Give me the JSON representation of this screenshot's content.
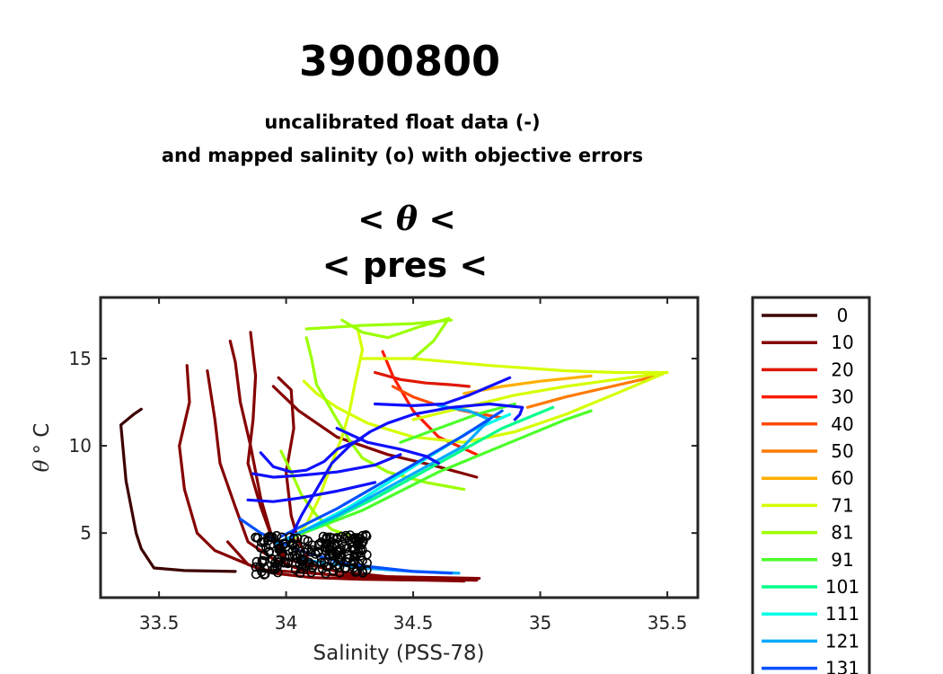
{
  "chart_data": {
    "type": "line",
    "title": "3900800",
    "subtitle_line1": "uncalibrated float data (-)",
    "subtitle_line2": "and mapped salinity (o) with objective errors",
    "sub_title_theta_left": "< ",
    "sub_title_theta_symbol": "θ",
    "sub_title_theta_right": " <",
    "sub_title_pres": "< pres <",
    "xlabel": "Salinity (PSS-78)",
    "ylabel_symbol": "θ",
    "ylabel_unit": "° C",
    "xlim": [
      33.27,
      35.62
    ],
    "ylim": [
      1.3,
      18.5
    ],
    "xticks": [
      33.5,
      34,
      34.5,
      35,
      35.5
    ],
    "xtick_labels": [
      "33.5",
      "34",
      "34.5",
      "35",
      "35.5"
    ],
    "yticks": [
      5,
      10,
      15
    ],
    "ytick_labels": [
      "5",
      "10",
      "15"
    ],
    "grid": false,
    "legend_position": "outside-right",
    "series": [
      {
        "name": "0",
        "color": "#3d0000",
        "x": [
          33.43,
          33.4,
          33.35,
          33.37,
          33.41,
          33.43,
          33.48,
          33.6,
          33.8
        ],
        "y": [
          12.1,
          11.8,
          11.2,
          8.0,
          5.0,
          4.1,
          3.0,
          2.85,
          2.8
        ]
      },
      {
        "name": "10",
        "color": "#850000",
        "x": [
          33.61,
          33.62,
          33.58,
          33.6,
          33.65,
          33.72,
          33.9,
          34.2,
          34.5,
          34.7
        ],
        "y": [
          14.6,
          12.5,
          10.0,
          7.5,
          5.0,
          4.0,
          2.9,
          2.6,
          2.45,
          2.4
        ]
      },
      {
        "name": "10",
        "color": "#850000",
        "x": [
          33.69,
          33.72,
          33.74,
          33.8,
          33.85,
          33.95,
          34.1,
          34.3,
          34.5,
          34.75
        ],
        "y": [
          14.3,
          11.5,
          9.0,
          6.5,
          4.5,
          3.5,
          2.7,
          2.45,
          2.35,
          2.3
        ]
      },
      {
        "name": "10",
        "color": "#850000",
        "x": [
          33.78,
          33.8,
          33.82,
          33.86,
          33.9,
          33.94,
          34.0,
          34.2,
          34.4,
          34.76
        ],
        "y": [
          16.0,
          14.8,
          12.5,
          10.0,
          7.0,
          5.0,
          3.5,
          2.8,
          2.5,
          2.4
        ]
      },
      {
        "name": "10",
        "color": "#850000",
        "x": [
          33.86,
          33.88,
          33.87,
          33.85,
          33.9,
          33.95,
          34.0,
          34.1
        ],
        "y": [
          16.5,
          14.0,
          11.5,
          9.0,
          6.5,
          4.5,
          3.2,
          2.7
        ]
      },
      {
        "name": "10",
        "color": "#850000",
        "x": [
          33.97,
          34.02,
          34.03,
          34.0,
          34.02,
          34.05,
          34.1
        ],
        "y": [
          13.9,
          13.2,
          11.0,
          8.5,
          6.0,
          4.5,
          3.2
        ]
      },
      {
        "name": "10",
        "color": "#850000",
        "x": [
          33.95,
          34.05,
          34.2,
          34.4,
          34.6,
          34.75
        ],
        "y": [
          13.4,
          12.0,
          10.5,
          9.5,
          8.8,
          8.2
        ]
      },
      {
        "name": "10",
        "color": "#850000",
        "x": [
          33.77,
          33.85,
          33.95,
          34.1,
          34.3,
          34.55,
          34.7
        ],
        "y": [
          4.5,
          3.2,
          2.7,
          2.45,
          2.35,
          2.3,
          2.25
        ]
      },
      {
        "name": "20",
        "color": "#e01600",
        "x": [
          34.35,
          34.45,
          34.55,
          34.65,
          34.72
        ],
        "y": [
          14.2,
          13.8,
          13.6,
          13.5,
          13.4
        ]
      },
      {
        "name": "30",
        "color": "#ff1a00",
        "x": [
          34.38,
          34.42,
          34.5,
          34.6,
          34.75
        ],
        "y": [
          15.4,
          14.0,
          12.0,
          10.5,
          9.5
        ]
      },
      {
        "name": "40",
        "color": "#ff4a00",
        "x": [
          34.42,
          34.5,
          34.58,
          34.7,
          34.85
        ],
        "y": [
          13.4,
          12.8,
          12.4,
          12.0,
          11.6
        ]
      },
      {
        "name": "50",
        "color": "#ff7a00",
        "x": [
          34.95,
          35.1,
          35.25,
          35.4,
          35.48
        ],
        "y": [
          12.2,
          12.8,
          13.3,
          13.8,
          14.1
        ]
      },
      {
        "name": "60",
        "color": "#ffb000",
        "x": [
          34.7,
          34.85,
          35.0,
          35.2
        ],
        "y": [
          13.0,
          13.4,
          13.7,
          14.0
        ]
      },
      {
        "name": "71",
        "color": "#d4ff00",
        "x": [
          34.3,
          34.5,
          34.8,
          35.1,
          35.3,
          35.5,
          35.35,
          35.1,
          34.9,
          34.7,
          34.5
        ],
        "y": [
          15.0,
          15.0,
          14.6,
          14.3,
          14.2,
          14.2,
          13.9,
          13.4,
          12.9,
          12.2,
          11.5
        ]
      },
      {
        "name": "71",
        "color": "#d4ff00",
        "x": [
          34.07,
          34.12,
          34.2,
          34.32,
          34.5,
          34.7,
          34.9,
          35.1,
          35.3,
          35.48
        ],
        "y": [
          13.7,
          13.0,
          12.2,
          11.3,
          10.5,
          10.2,
          10.8,
          11.8,
          13.0,
          14.1
        ]
      },
      {
        "name": "71",
        "color": "#d4ff00",
        "x": [
          34.28,
          34.3,
          34.27,
          34.25,
          34.22,
          34.18,
          34.13,
          34.08,
          34.02
        ],
        "y": [
          16.8,
          15.5,
          13.5,
          12.0,
          10.5,
          9.0,
          7.0,
          5.5,
          4.5
        ]
      },
      {
        "name": "81",
        "color": "#9cff00",
        "x": [
          34.08,
          34.3,
          34.5,
          34.65
        ],
        "y": [
          16.7,
          16.9,
          17.0,
          17.2
        ]
      },
      {
        "name": "81",
        "color": "#9cff00",
        "x": [
          34.08,
          34.1,
          34.12,
          34.16,
          34.2,
          34.25,
          34.3,
          34.4,
          34.55,
          34.7
        ],
        "y": [
          16.2,
          15.0,
          13.5,
          12.5,
          11.5,
          10.3,
          9.3,
          8.5,
          7.9,
          7.5
        ]
      },
      {
        "name": "81",
        "color": "#9cff00",
        "x": [
          34.22,
          34.3,
          34.4,
          34.52,
          34.64,
          34.58,
          34.5
        ],
        "y": [
          17.2,
          16.5,
          16.2,
          16.8,
          17.3,
          16.0,
          15.0
        ]
      },
      {
        "name": "81",
        "color": "#9cff00",
        "x": [
          33.98,
          34.02,
          34.06,
          34.12,
          34.18,
          34.26
        ],
        "y": [
          9.7,
          8.5,
          7.2,
          6.0,
          5.2,
          4.8
        ]
      },
      {
        "name": "91",
        "color": "#4cff2a",
        "x": [
          34.05,
          34.3,
          34.6,
          34.9,
          35.1,
          35.2
        ],
        "y": [
          4.9,
          6.3,
          8.5,
          10.3,
          11.5,
          12.0
        ]
      },
      {
        "name": "91",
        "color": "#4cff2a",
        "x": [
          34.45,
          34.6,
          34.75,
          34.9
        ],
        "y": [
          10.2,
          11.0,
          11.8,
          12.4
        ]
      },
      {
        "name": "101",
        "color": "#00ff8a",
        "x": [
          34.1,
          34.35,
          34.6,
          34.85,
          35.05
        ],
        "y": [
          5.2,
          7.0,
          9.0,
          11.0,
          12.2
        ]
      },
      {
        "name": "111",
        "color": "#00ffea",
        "x": [
          34.0,
          34.25,
          34.5,
          34.72,
          34.88
        ],
        "y": [
          4.6,
          6.5,
          8.8,
          10.8,
          11.8
        ]
      },
      {
        "name": "121",
        "color": "#00aaff",
        "x": [
          33.96,
          34.2,
          34.45,
          34.7,
          34.8,
          34.72,
          34.6
        ],
        "y": [
          4.4,
          6.0,
          8.0,
          10.0,
          11.5,
          12.0,
          12.3
        ]
      },
      {
        "name": "121",
        "color": "#00aaff",
        "x": [
          34.05,
          34.3,
          34.5,
          34.68
        ],
        "y": [
          3.5,
          3.0,
          2.8,
          2.7
        ]
      },
      {
        "name": "131",
        "color": "#0050ff",
        "x": [
          33.82,
          33.9,
          34.05,
          34.25,
          34.5,
          34.65
        ],
        "y": [
          5.8,
          5.0,
          4.0,
          3.2,
          2.8,
          2.7
        ]
      },
      {
        "name": "131",
        "color": "#0050ff",
        "x": [
          33.98,
          34.2,
          34.45,
          34.7,
          34.85
        ],
        "y": [
          4.8,
          6.4,
          8.5,
          10.6,
          12.0
        ]
      },
      {
        "name": "131",
        "color": "#1010ff",
        "x": [
          34.02,
          34.06,
          34.12,
          34.18,
          34.25,
          34.33,
          34.4,
          34.5,
          34.65,
          34.8,
          34.93,
          34.92,
          34.9
        ],
        "y": [
          4.8,
          6.0,
          7.5,
          9.0,
          10.0,
          10.8,
          11.3,
          11.8,
          12.2,
          12.4,
          12.2,
          11.8,
          11.5
        ]
      },
      {
        "name": "131",
        "color": "#1010ff",
        "x": [
          34.35,
          34.5,
          34.62,
          34.72,
          34.8,
          34.88
        ],
        "y": [
          12.4,
          12.3,
          12.4,
          12.9,
          13.4,
          13.9
        ]
      },
      {
        "name": "131",
        "color": "#1010ff",
        "x": [
          33.9,
          33.95,
          34.02,
          34.08,
          34.15,
          34.2,
          34.3
        ],
        "y": [
          9.6,
          8.8,
          8.5,
          8.6,
          9.1,
          9.8,
          10.4
        ]
      },
      {
        "name": "131",
        "color": "#1010ff",
        "x": [
          33.87,
          33.95,
          34.05,
          34.2,
          34.35,
          34.45
        ],
        "y": [
          8.4,
          8.2,
          8.3,
          8.5,
          8.9,
          9.5
        ]
      },
      {
        "name": "131",
        "color": "#1010ff",
        "x": [
          34.2,
          34.32,
          34.45,
          34.55,
          34.6
        ],
        "y": [
          11.0,
          10.2,
          9.8,
          9.4,
          9.0
        ]
      },
      {
        "name": "131",
        "color": "#1010ff",
        "x": [
          33.85,
          33.95,
          34.05,
          34.2,
          34.35
        ],
        "y": [
          6.9,
          6.8,
          7.0,
          7.4,
          7.9
        ]
      }
    ],
    "legend": [
      {
        "label": "0",
        "color": "#3d0000"
      },
      {
        "label": "10",
        "color": "#850000"
      },
      {
        "label": "20",
        "color": "#e01600"
      },
      {
        "label": "30",
        "color": "#ff1a00"
      },
      {
        "label": "40",
        "color": "#ff4a00"
      },
      {
        "label": "50",
        "color": "#ff7a00"
      },
      {
        "label": "60",
        "color": "#ffb000"
      },
      {
        "label": "71",
        "color": "#d4ff00"
      },
      {
        "label": "81",
        "color": "#9cff00"
      },
      {
        "label": "91",
        "color": "#4cff2a"
      },
      {
        "label": "101",
        "color": "#00ff8a"
      },
      {
        "label": "111",
        "color": "#00ffea"
      },
      {
        "label": "121",
        "color": "#00aaff"
      },
      {
        "label": "131",
        "color": "#0050ff"
      }
    ],
    "mapped_points": {
      "color": "#000000",
      "x_range": [
        33.88,
        34.32
      ],
      "y_range": [
        2.6,
        4.9
      ]
    }
  }
}
